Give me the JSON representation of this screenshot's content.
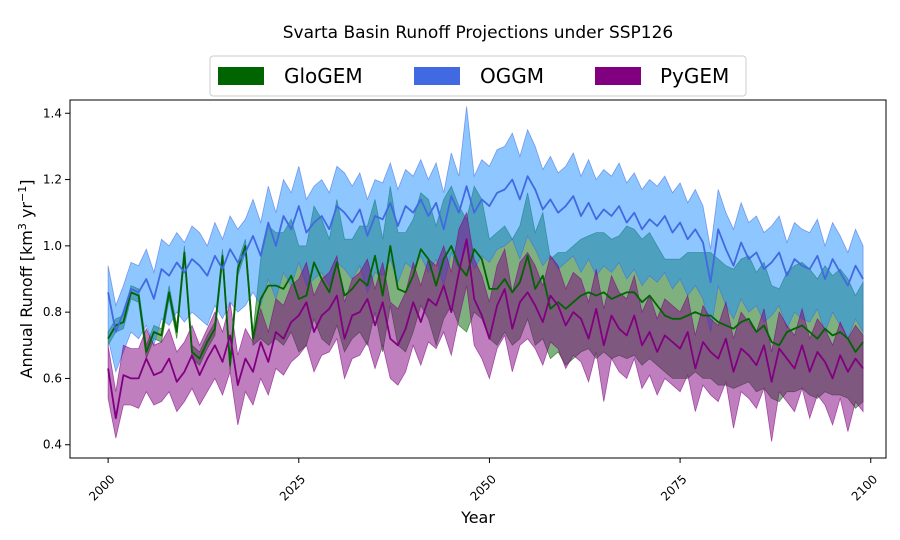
{
  "chart_data": {
    "type": "line",
    "title": "Svarta Basin Runoff Projections under SSP126",
    "xlabel": "Year",
    "ylabel_main": "Annual Runoff [km",
    "ylabel_sup1": "3",
    "ylabel_mid": " yr",
    "ylabel_sup2": "−1",
    "ylabel_end": "]",
    "xlim": [
      1995,
      2102
    ],
    "ylim": [
      0.36,
      1.44
    ],
    "xticks": [
      2000,
      2025,
      2050,
      2075,
      2100
    ],
    "yticks": [
      0.4,
      0.6,
      0.8,
      1.0,
      1.2,
      1.4
    ],
    "ytick_labels": [
      "0.4",
      "0.6",
      "0.8",
      "1.0",
      "1.2",
      "1.4"
    ],
    "legend_position": "top-center",
    "series": [
      {
        "name": "GloGEM",
        "color": "#006400",
        "fill_alpha": 0.5,
        "start_year": 2000,
        "median": [
          0.72,
          0.76,
          0.77,
          0.86,
          0.85,
          0.68,
          0.74,
          0.73,
          0.86,
          0.74,
          0.98,
          0.68,
          0.66,
          0.71,
          0.75,
          0.97,
          0.64,
          0.93,
          1.0,
          0.72,
          0.84,
          0.88,
          0.88,
          0.87,
          0.91,
          0.84,
          0.85,
          0.95,
          0.9,
          0.86,
          0.95,
          0.85,
          0.87,
          0.9,
          0.88,
          0.97,
          0.85,
          1.0,
          0.87,
          0.86,
          0.91,
          0.99,
          0.96,
          0.88,
          0.96,
          1.0,
          0.94,
          0.91,
          0.99,
          0.96,
          0.87,
          0.87,
          0.9,
          0.86,
          0.89,
          0.97,
          0.87,
          0.91,
          0.81,
          0.83,
          0.81,
          0.83,
          0.85,
          0.86,
          0.85,
          0.86,
          0.84,
          0.85,
          0.86,
          0.86,
          0.83,
          0.85,
          0.82,
          0.79,
          0.78,
          0.78,
          0.79,
          0.8,
          0.79,
          0.79,
          0.77,
          0.76,
          0.75,
          0.77,
          0.78,
          0.74,
          0.76,
          0.71,
          0.7,
          0.74,
          0.75,
          0.76,
          0.74,
          0.72,
          0.75,
          0.73,
          0.74,
          0.72,
          0.68,
          0.71
        ],
        "lower": [
          0.7,
          0.74,
          0.75,
          0.84,
          0.83,
          0.66,
          0.72,
          0.71,
          0.84,
          0.72,
          0.96,
          0.66,
          0.64,
          0.69,
          0.73,
          0.95,
          0.62,
          0.91,
          0.98,
          0.7,
          0.72,
          0.7,
          0.72,
          0.7,
          0.74,
          0.68,
          0.7,
          0.78,
          0.72,
          0.7,
          0.76,
          0.68,
          0.72,
          0.74,
          0.7,
          0.8,
          0.68,
          0.82,
          0.7,
          0.68,
          0.74,
          0.82,
          0.78,
          0.7,
          0.78,
          0.82,
          0.76,
          0.74,
          0.8,
          0.78,
          0.72,
          0.7,
          0.74,
          0.7,
          0.72,
          0.78,
          0.7,
          0.72,
          0.66,
          0.68,
          0.64,
          0.66,
          0.68,
          0.69,
          0.66,
          0.68,
          0.66,
          0.67,
          0.66,
          0.67,
          0.64,
          0.66,
          0.64,
          0.62,
          0.6,
          0.6,
          0.6,
          0.62,
          0.6,
          0.6,
          0.58,
          0.58,
          0.57,
          0.58,
          0.59,
          0.56,
          0.57,
          0.54,
          0.53,
          0.56,
          0.56,
          0.57,
          0.55,
          0.54,
          0.56,
          0.55,
          0.55,
          0.54,
          0.51,
          0.53
        ],
        "upper": [
          0.74,
          0.78,
          0.79,
          0.88,
          0.87,
          0.7,
          0.76,
          0.75,
          0.88,
          0.76,
          1.0,
          0.7,
          0.68,
          0.73,
          0.77,
          0.99,
          0.66,
          0.95,
          1.02,
          0.74,
          0.96,
          1.06,
          1.04,
          1.04,
          1.08,
          1.0,
          1.0,
          1.12,
          1.08,
          1.02,
          1.14,
          1.02,
          1.02,
          1.06,
          1.06,
          1.14,
          1.02,
          1.18,
          1.04,
          1.04,
          1.08,
          1.16,
          1.14,
          1.06,
          1.14,
          1.18,
          1.12,
          1.08,
          1.18,
          1.14,
          1.02,
          1.04,
          1.06,
          1.02,
          1.06,
          1.16,
          1.04,
          1.1,
          0.96,
          0.98,
          0.98,
          1.0,
          1.02,
          1.03,
          1.04,
          1.04,
          1.02,
          1.03,
          1.06,
          1.05,
          1.02,
          1.04,
          1.0,
          0.96,
          0.96,
          0.96,
          0.98,
          0.98,
          0.98,
          0.98,
          0.96,
          0.94,
          0.93,
          0.96,
          0.97,
          0.92,
          0.95,
          0.88,
          0.87,
          0.92,
          0.94,
          0.95,
          0.93,
          0.9,
          0.94,
          0.91,
          0.93,
          0.9,
          0.85,
          0.89
        ]
      },
      {
        "name": "OGGM",
        "color": "#4169E1",
        "fill_color": "#1E90FF",
        "fill_alpha": 0.5,
        "start_year": 2000,
        "median": [
          0.86,
          0.74,
          0.8,
          0.87,
          0.86,
          0.9,
          0.84,
          0.93,
          0.91,
          0.95,
          0.92,
          0.96,
          0.94,
          0.91,
          0.97,
          0.93,
          0.99,
          0.95,
          0.98,
          1.03,
          0.97,
          1.07,
          1.0,
          1.09,
          1.05,
          1.12,
          1.04,
          1.07,
          1.09,
          1.05,
          1.12,
          1.1,
          1.07,
          1.11,
          1.03,
          1.09,
          1.08,
          1.13,
          1.06,
          1.12,
          1.1,
          1.14,
          1.09,
          1.13,
          1.05,
          1.15,
          1.1,
          1.18,
          1.1,
          1.14,
          1.12,
          1.16,
          1.17,
          1.2,
          1.14,
          1.21,
          1.17,
          1.11,
          1.14,
          1.1,
          1.12,
          1.15,
          1.09,
          1.13,
          1.08,
          1.11,
          1.09,
          1.12,
          1.07,
          1.1,
          1.05,
          1.08,
          1.06,
          1.09,
          1.04,
          1.07,
          1.02,
          1.05,
          1.01,
          0.89,
          1.05,
          0.99,
          0.94,
          1.01,
          0.96,
          0.98,
          0.93,
          0.95,
          0.98,
          0.91,
          0.96,
          0.94,
          0.93,
          0.97,
          0.9,
          0.96,
          0.92,
          0.88,
          0.94,
          0.9
        ],
        "lower": [
          0.72,
          0.62,
          0.68,
          0.74,
          0.72,
          0.76,
          0.7,
          0.78,
          0.76,
          0.8,
          0.77,
          0.8,
          0.78,
          0.76,
          0.82,
          0.78,
          0.83,
          0.8,
          0.82,
          0.86,
          0.82,
          0.9,
          0.84,
          0.92,
          0.88,
          0.95,
          0.88,
          0.9,
          0.92,
          0.88,
          0.95,
          0.93,
          0.9,
          0.94,
          0.86,
          0.92,
          0.91,
          0.96,
          0.89,
          0.95,
          0.93,
          0.97,
          0.92,
          0.96,
          0.88,
          0.98,
          0.93,
          1.0,
          0.93,
          0.97,
          0.95,
          0.99,
          1.0,
          1.02,
          0.96,
          1.03,
          0.99,
          0.94,
          0.97,
          0.93,
          0.95,
          0.97,
          0.92,
          0.96,
          0.91,
          0.94,
          0.92,
          0.95,
          0.9,
          0.93,
          0.88,
          0.91,
          0.89,
          0.92,
          0.87,
          0.9,
          0.85,
          0.88,
          0.84,
          0.74,
          0.88,
          0.82,
          0.78,
          0.84,
          0.8,
          0.82,
          0.77,
          0.79,
          0.82,
          0.75,
          0.8,
          0.78,
          0.77,
          0.81,
          0.74,
          0.8,
          0.76,
          0.72,
          0.78,
          0.74
        ],
        "upper": [
          0.94,
          0.82,
          0.88,
          0.95,
          0.94,
          0.99,
          0.92,
          1.02,
          1.0,
          1.04,
          1.01,
          1.06,
          1.04,
          1.0,
          1.07,
          1.02,
          1.09,
          1.05,
          1.08,
          1.14,
          1.07,
          1.18,
          1.1,
          1.2,
          1.16,
          1.24,
          1.14,
          1.18,
          1.2,
          1.16,
          1.24,
          1.22,
          1.18,
          1.22,
          1.14,
          1.2,
          1.19,
          1.25,
          1.17,
          1.23,
          1.21,
          1.26,
          1.2,
          1.25,
          1.16,
          1.28,
          1.21,
          1.42,
          1.21,
          1.26,
          1.24,
          1.29,
          1.3,
          1.34,
          1.27,
          1.35,
          1.3,
          1.23,
          1.27,
          1.22,
          1.24,
          1.28,
          1.21,
          1.26,
          1.2,
          1.23,
          1.21,
          1.25,
          1.19,
          1.22,
          1.17,
          1.2,
          1.18,
          1.21,
          1.16,
          1.19,
          1.13,
          1.17,
          1.12,
          0.99,
          1.17,
          1.1,
          1.05,
          1.13,
          1.07,
          1.09,
          1.04,
          1.06,
          1.09,
          1.01,
          1.07,
          1.05,
          1.04,
          1.08,
          1.0,
          1.07,
          1.03,
          0.98,
          1.05,
          1.0
        ]
      },
      {
        "name": "PyGEM",
        "color": "#800080",
        "fill_alpha": 0.5,
        "start_year": 2000,
        "median": [
          0.63,
          0.48,
          0.61,
          0.6,
          0.6,
          0.66,
          0.61,
          0.62,
          0.66,
          0.59,
          0.62,
          0.67,
          0.61,
          0.66,
          0.7,
          0.65,
          0.73,
          0.58,
          0.66,
          0.62,
          0.71,
          0.65,
          0.74,
          0.72,
          0.77,
          0.79,
          0.83,
          0.74,
          0.79,
          0.81,
          0.85,
          0.72,
          0.79,
          0.8,
          0.84,
          0.76,
          0.83,
          0.72,
          0.7,
          0.75,
          0.83,
          0.77,
          0.84,
          0.82,
          0.88,
          0.8,
          0.92,
          1.02,
          0.84,
          0.79,
          0.72,
          0.82,
          0.87,
          0.75,
          0.83,
          0.86,
          0.82,
          0.77,
          0.85,
          0.82,
          0.76,
          0.8,
          0.78,
          0.72,
          0.81,
          0.7,
          0.79,
          0.75,
          0.73,
          0.79,
          0.7,
          0.74,
          0.68,
          0.73,
          0.71,
          0.69,
          0.74,
          0.63,
          0.71,
          0.68,
          0.66,
          0.72,
          0.62,
          0.69,
          0.67,
          0.64,
          0.7,
          0.59,
          0.69,
          0.66,
          0.63,
          0.7,
          0.62,
          0.68,
          0.65,
          0.6,
          0.67,
          0.62,
          0.66,
          0.63
        ],
        "lower": [
          0.54,
          0.42,
          0.52,
          0.52,
          0.51,
          0.56,
          0.52,
          0.53,
          0.56,
          0.5,
          0.53,
          0.57,
          0.52,
          0.56,
          0.6,
          0.55,
          0.62,
          0.46,
          0.56,
          0.52,
          0.6,
          0.55,
          0.63,
          0.61,
          0.65,
          0.67,
          0.7,
          0.62,
          0.67,
          0.68,
          0.72,
          0.6,
          0.66,
          0.67,
          0.71,
          0.63,
          0.7,
          0.6,
          0.58,
          0.62,
          0.7,
          0.64,
          0.71,
          0.69,
          0.74,
          0.67,
          0.78,
          0.88,
          0.7,
          0.66,
          0.6,
          0.69,
          0.73,
          0.62,
          0.7,
          0.72,
          0.69,
          0.64,
          0.71,
          0.69,
          0.63,
          0.67,
          0.65,
          0.59,
          0.68,
          0.53,
          0.66,
          0.62,
          0.6,
          0.66,
          0.57,
          0.61,
          0.55,
          0.6,
          0.58,
          0.56,
          0.61,
          0.5,
          0.58,
          0.55,
          0.53,
          0.59,
          0.45,
          0.56,
          0.54,
          0.51,
          0.57,
          0.41,
          0.56,
          0.53,
          0.5,
          0.57,
          0.48,
          0.55,
          0.52,
          0.46,
          0.54,
          0.44,
          0.53,
          0.5
        ],
        "upper": [
          0.7,
          0.56,
          0.7,
          0.69,
          0.69,
          0.75,
          0.7,
          0.71,
          0.75,
          0.68,
          0.71,
          0.76,
          0.7,
          0.75,
          0.8,
          0.74,
          0.83,
          0.67,
          0.75,
          0.71,
          0.81,
          0.74,
          0.84,
          0.82,
          0.88,
          0.9,
          0.95,
          0.85,
          0.9,
          0.92,
          0.97,
          0.83,
          0.9,
          0.92,
          0.96,
          0.87,
          0.95,
          0.83,
          0.81,
          0.86,
          0.95,
          0.88,
          0.96,
          0.94,
          1.0,
          0.92,
          1.05,
          1.1,
          0.96,
          0.91,
          0.83,
          0.94,
          0.99,
          0.86,
          0.95,
          0.98,
          0.94,
          0.88,
          0.97,
          0.94,
          0.87,
          0.92,
          0.9,
          0.83,
          0.93,
          0.81,
          0.91,
          0.86,
          0.84,
          0.91,
          0.8,
          0.85,
          0.78,
          0.84,
          0.82,
          0.8,
          0.85,
          0.73,
          0.82,
          0.78,
          0.76,
          0.83,
          0.72,
          0.8,
          0.77,
          0.74,
          0.81,
          0.68,
          0.8,
          0.76,
          0.73,
          0.81,
          0.72,
          0.78,
          0.75,
          0.7,
          0.77,
          0.72,
          0.76,
          0.73
        ]
      }
    ]
  }
}
